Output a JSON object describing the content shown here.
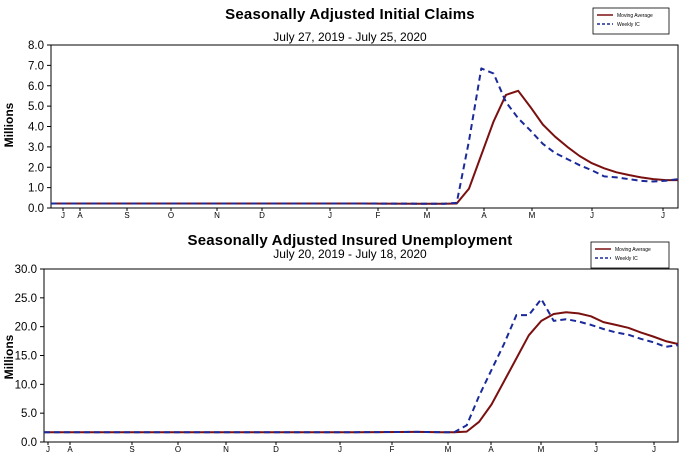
{
  "chart_data": [
    {
      "type": "line",
      "title": "Seasonally Adjusted Initial Claims",
      "subtitle": "July 27, 2019 - July 25, 2020",
      "ylabel": "Millions",
      "ylim": [
        0,
        8
      ],
      "yticks": [
        "0.0",
        "1.0",
        "2.0",
        "3.0",
        "4.0",
        "5.0",
        "6.0",
        "7.0",
        "8.0"
      ],
      "month_labels": [
        "J",
        "A",
        "S",
        "O",
        "N",
        "D",
        "J",
        "F",
        "M",
        "A",
        "M",
        "J",
        "J"
      ],
      "grid": false,
      "legend_position": "top-right",
      "x": [
        0,
        5,
        10,
        15,
        20,
        25,
        30,
        32,
        33,
        34,
        35,
        36,
        37,
        38,
        39,
        40,
        41,
        42,
        43,
        44,
        45,
        46,
        47,
        48,
        49,
        50,
        51
      ],
      "series": [
        {
          "name": "Moving Average",
          "color": "#7a1010",
          "dash": false,
          "values": [
            0.22,
            0.22,
            0.22,
            0.22,
            0.22,
            0.22,
            0.21,
            0.21,
            0.22,
            0.95,
            2.6,
            4.25,
            5.55,
            5.75,
            4.95,
            4.1,
            3.5,
            3.0,
            2.55,
            2.2,
            1.95,
            1.75,
            1.62,
            1.5,
            1.42,
            1.37,
            1.37
          ]
        },
        {
          "name": "Weekly IC",
          "color": "#1b2a9a",
          "dash": true,
          "values": [
            0.22,
            0.22,
            0.22,
            0.22,
            0.22,
            0.22,
            0.21,
            0.21,
            0.25,
            3.3,
            6.85,
            6.6,
            5.2,
            4.4,
            3.8,
            3.15,
            2.7,
            2.4,
            2.1,
            1.85,
            1.55,
            1.5,
            1.42,
            1.33,
            1.3,
            1.34,
            1.42
          ]
        }
      ]
    },
    {
      "type": "line",
      "title": "Seasonally Adjusted Insured Unemployment",
      "subtitle": "July 20, 2019 - July 18, 2020",
      "ylabel": "Millions",
      "ylim": [
        0,
        30
      ],
      "yticks": [
        "0.0",
        "5.0",
        "10.0",
        "15.0",
        "20.0",
        "25.0",
        "30.0"
      ],
      "month_labels": [
        "J",
        "A",
        "S",
        "O",
        "N",
        "D",
        "J",
        "F",
        "M",
        "A",
        "M",
        "J",
        "J"
      ],
      "grid": false,
      "legend_position": "top-right",
      "x": [
        0,
        5,
        10,
        15,
        20,
        25,
        30,
        32,
        33,
        34,
        35,
        36,
        37,
        38,
        39,
        40,
        41,
        42,
        43,
        44,
        45,
        46,
        47,
        48,
        49,
        50,
        51
      ],
      "series": [
        {
          "name": "Moving Average",
          "color": "#7a1010",
          "dash": false,
          "values": [
            1.7,
            1.7,
            1.7,
            1.7,
            1.7,
            1.7,
            1.75,
            1.7,
            1.7,
            1.8,
            3.5,
            6.5,
            10.5,
            14.5,
            18.5,
            21.0,
            22.2,
            22.5,
            22.3,
            21.8,
            20.8,
            20.3,
            19.8,
            19.0,
            18.3,
            17.5,
            17.0
          ]
        },
        {
          "name": "Weekly IC",
          "color": "#1b2a9a",
          "dash": true,
          "values": [
            1.7,
            1.7,
            1.7,
            1.7,
            1.7,
            1.7,
            1.75,
            1.7,
            1.7,
            2.9,
            8.0,
            12.5,
            17.0,
            22.0,
            22.0,
            24.8,
            21.0,
            21.3,
            20.9,
            20.3,
            19.6,
            19.0,
            18.6,
            17.9,
            17.3,
            16.5,
            16.8
          ]
        }
      ]
    }
  ]
}
